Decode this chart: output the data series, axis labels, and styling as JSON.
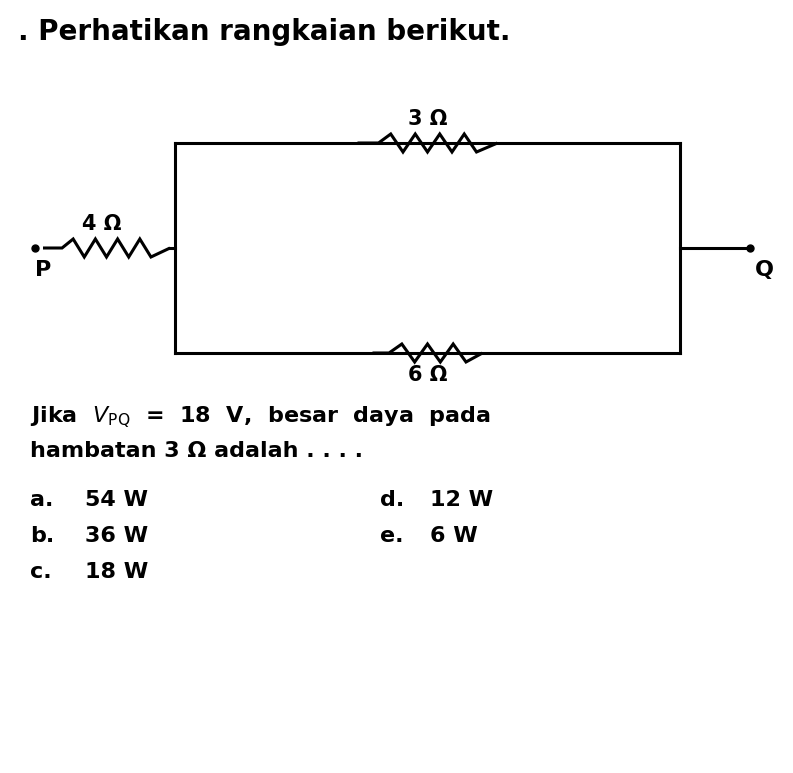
{
  "title": ". Perhatikan rangkaian berikut.",
  "background_color": "#ffffff",
  "text_color": "#000000",
  "circuit": {
    "resistor_3_label": "3 Ω",
    "resistor_6_label": "6 Ω",
    "resistor_4_label": "4 Ω",
    "P_label": "P",
    "Q_label": "Q"
  },
  "answers": [
    {
      "label": "a.",
      "text": "54 W"
    },
    {
      "label": "b.",
      "text": "36 W"
    },
    {
      "label": "c.",
      "text": "18 W"
    },
    {
      "label": "d.",
      "text": "12 W"
    },
    {
      "label": "e.",
      "text": "6 W"
    }
  ],
  "figsize": [
    7.93,
    7.73
  ],
  "dpi": 100
}
